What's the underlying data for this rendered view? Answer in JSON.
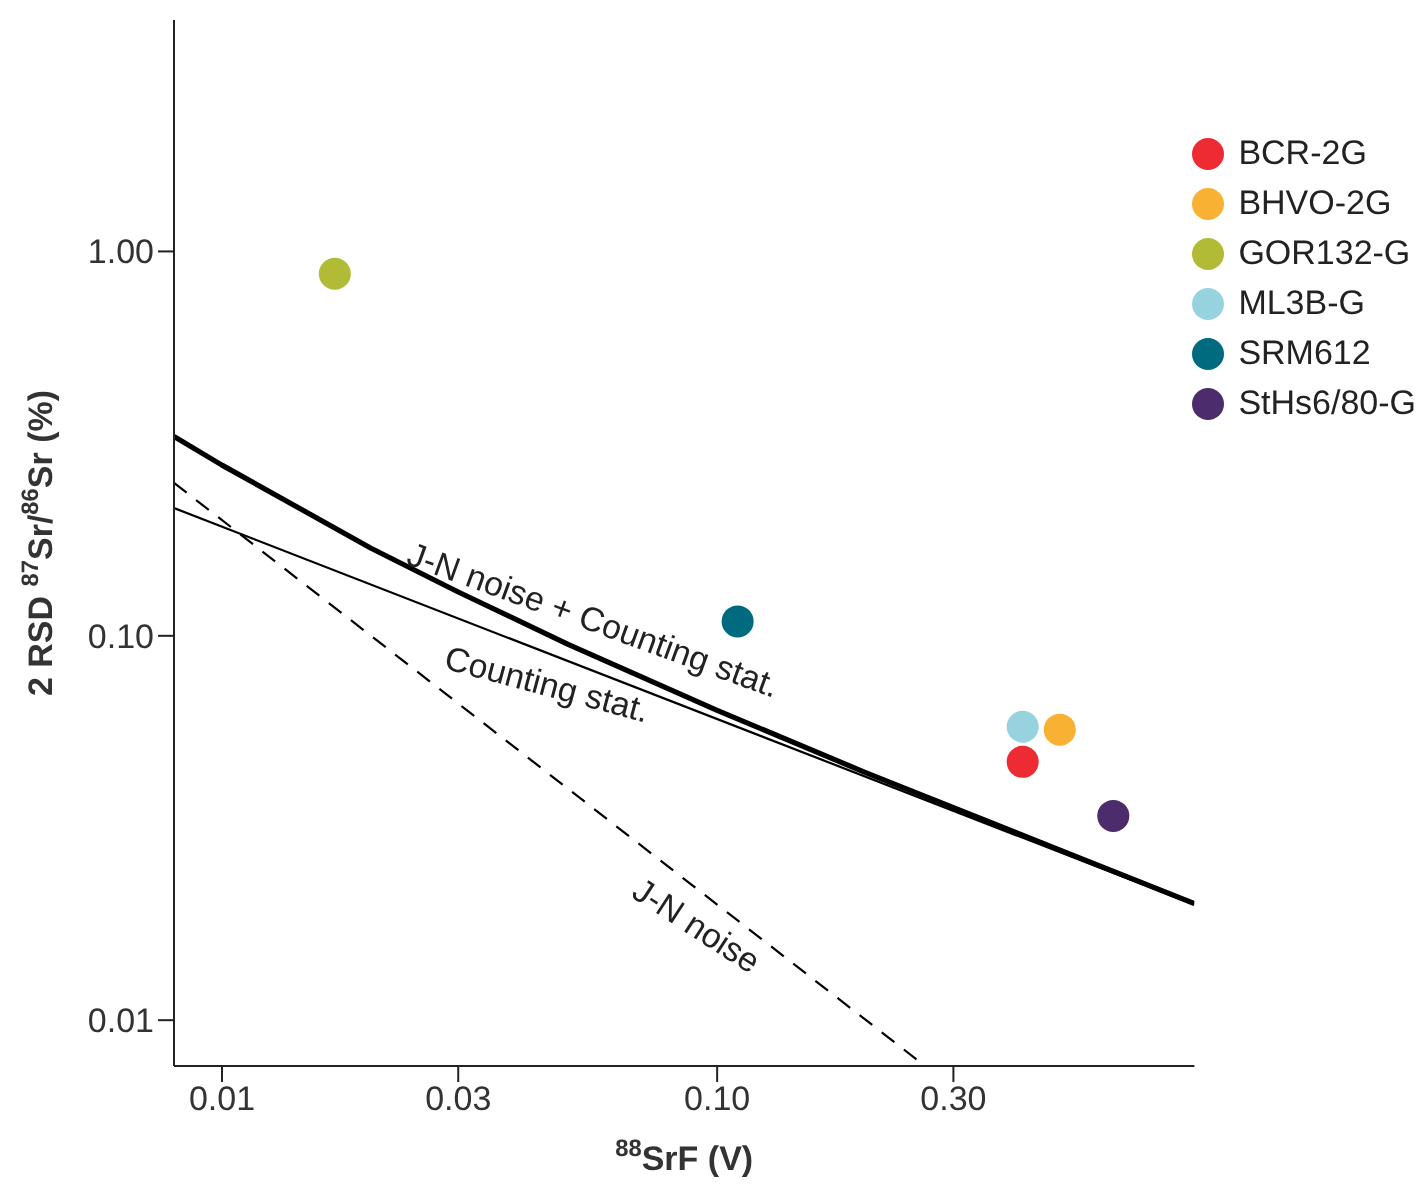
{
  "chart_data": {
    "type": "scatter",
    "xlabel": "$^{88}$SrF (V)",
    "ylabel": "2 RSD $^{87}$Sr/$^{86}$Sr (%)",
    "log": "xy",
    "xlim": [
      0.008,
      0.92
    ],
    "ylim": [
      0.0076,
      4
    ],
    "xticks": [
      0.01,
      0.03,
      {
        "value": 0.1,
        "label": "0.10"
      },
      {
        "value": 0.3,
        "label": "0.30"
      }
    ],
    "yticks": [
      {
        "value": 0.01,
        "label": "0.01"
      },
      {
        "value": 0.1,
        "label": "0.10"
      },
      {
        "value": 1,
        "label": "1.00"
      }
    ],
    "grid": false,
    "legend": "top right",
    "marker": "circle",
    "series": [
      {
        "name": "BCR-2G",
        "color": "#ee2a32",
        "x": [
          0.414
        ],
        "values": [
          0.047
        ]
      },
      {
        "name": "BHVO-2G",
        "color": "#f8b133",
        "x": [
          0.492
        ],
        "values": [
          0.057
        ]
      },
      {
        "name": "GOR132-G",
        "color": "#b2bb35",
        "x": [
          0.0169
        ],
        "values": [
          0.875
        ]
      },
      {
        "name": "ML3B-G",
        "color": "#97d3de",
        "x": [
          0.414
        ],
        "values": [
          0.058
        ]
      },
      {
        "name": "SRM612",
        "color": "#006a7f",
        "x": [
          0.11
        ],
        "values": [
          0.109
        ]
      },
      {
        "name": "StHs6/80-G",
        "color": "#4c2c6c",
        "x": [
          0.631
        ],
        "values": [
          0.034
        ]
      },
      {
        "name": "J-N noise + Counting stat.",
        "type": "line",
        "color": "#000000",
        "line_style": "solid",
        "marker": "none",
        "x": [
          0.008,
          0.01,
          0.02,
          0.03,
          0.05,
          0.1,
          0.2,
          0.5,
          0.92
        ],
        "values": [
          0.33,
          0.278,
          0.169,
          0.13,
          0.095,
          0.064,
          0.044,
          0.0275,
          0.0201
        ]
      },
      {
        "name": "Counting stat.",
        "type": "line",
        "color": "#000000",
        "line_style": "solid",
        "marker": "none",
        "x": [
          0.008,
          0.92
        ],
        "values": [
          0.215,
          0.02
        ]
      },
      {
        "name": "J-N noise",
        "type": "line",
        "color": "#000000",
        "line_style": "dashed",
        "marker": "none",
        "x": [
          0.008,
          0.263
        ],
        "values": [
          0.25,
          0.0076
        ]
      }
    ]
  }
}
